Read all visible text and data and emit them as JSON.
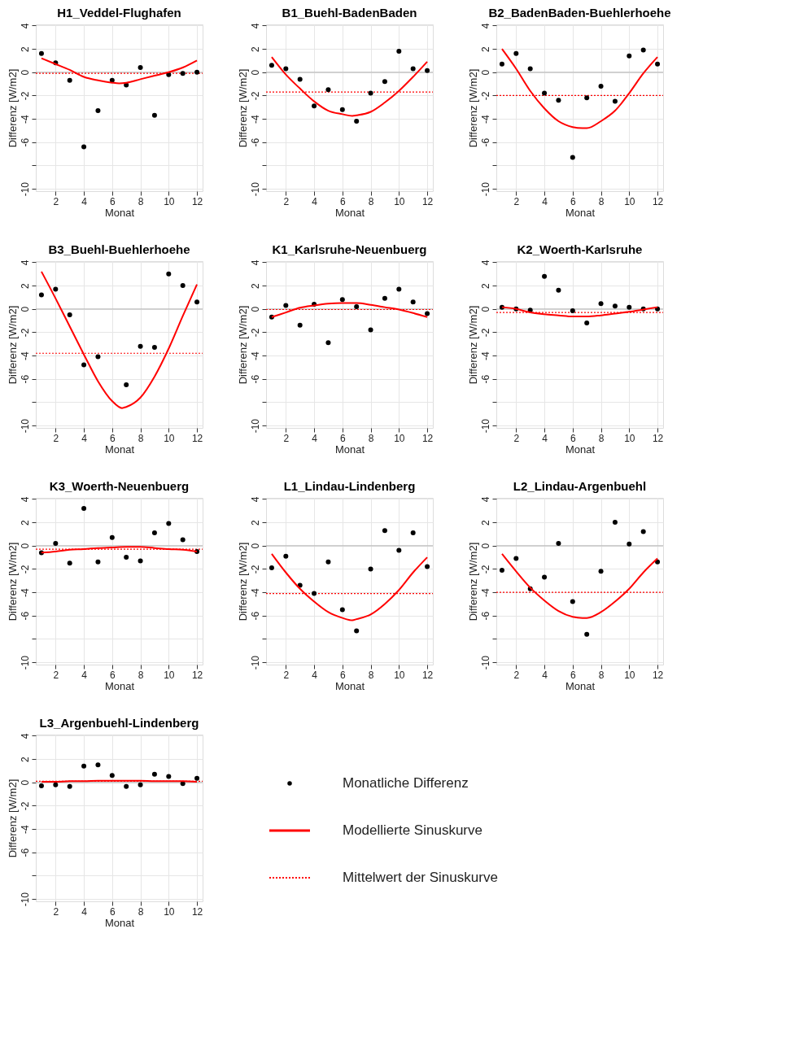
{
  "chart_data": [
    {
      "type": "scatter",
      "title": "H1_Veddel-Flughafen",
      "xlabel": "Monat",
      "ylabel": "Differenz [W/m2]",
      "xlim": [
        0.6,
        12.4
      ],
      "ylim": [
        -10.2,
        4.1
      ],
      "xticks": [
        2,
        4,
        6,
        8,
        10,
        12
      ],
      "yticks": [
        -10,
        {
          "value": -8,
          "label": null
        },
        -6,
        -4,
        -2,
        0,
        2,
        4
      ],
      "grid": true,
      "marker": "circle",
      "x": [
        1,
        2,
        3,
        4,
        5,
        6,
        7,
        8,
        9,
        10,
        11,
        12
      ],
      "series": [
        {
          "type": "scatter",
          "color": "#000000",
          "values": [
            1.6,
            0.8,
            -0.7,
            -6.4,
            -3.3,
            -0.7,
            -1.1,
            0.4,
            -3.7,
            -0.2,
            -0.1,
            0
          ]
        },
        {
          "type": "line",
          "color": "#ff0000",
          "line_style": "solid",
          "marker": "none",
          "x": [
            1,
            2,
            3,
            4,
            5,
            6,
            6.5,
            7,
            8,
            9,
            10,
            11,
            12
          ],
          "values": [
            1.2,
            0.7,
            0.2,
            -0.4,
            -0.7,
            -0.9,
            -0.95,
            -0.9,
            -0.6,
            -0.3,
            0,
            0.4,
            1.0
          ]
        }
      ],
      "ref_lines": [
        {
          "axis": "y",
          "value": 0,
          "color": "#bebebe",
          "line_style": "solid"
        },
        {
          "axis": "y",
          "value": -0.1,
          "color": "#ff0000",
          "line_style": "dotted"
        }
      ]
    },
    {
      "type": "scatter",
      "title": "B1_Buehl-BadenBaden",
      "xlabel": "Monat",
      "ylabel": "Differenz [W/m2]",
      "xlim": [
        0.6,
        12.4
      ],
      "ylim": [
        -10.2,
        4.1
      ],
      "xticks": [
        2,
        4,
        6,
        8,
        10,
        12
      ],
      "yticks": [
        -10,
        {
          "value": -8,
          "label": null
        },
        -6,
        -4,
        -2,
        0,
        2,
        4
      ],
      "grid": true,
      "marker": "circle",
      "x": [
        1,
        2,
        3,
        4,
        5,
        6,
        7,
        8,
        9,
        10,
        11,
        12
      ],
      "series": [
        {
          "type": "scatter",
          "color": "#000000",
          "values": [
            0.6,
            0.3,
            -0.6,
            -2.9,
            -1.5,
            -3.2,
            -4.2,
            -1.8,
            -0.8,
            1.8,
            0.3,
            0.15
          ]
        },
        {
          "type": "line",
          "color": "#ff0000",
          "line_style": "solid",
          "marker": "none",
          "x": [
            1,
            2,
            3,
            4,
            5,
            6,
            6.7,
            7,
            8,
            9,
            10,
            11,
            12
          ],
          "values": [
            1.3,
            -0.2,
            -1.4,
            -2.5,
            -3.3,
            -3.6,
            -3.75,
            -3.7,
            -3.4,
            -2.6,
            -1.6,
            -0.4,
            0.9
          ]
        }
      ],
      "ref_lines": [
        {
          "axis": "y",
          "value": 0,
          "color": "#bebebe",
          "line_style": "solid"
        },
        {
          "axis": "y",
          "value": -1.7,
          "color": "#ff0000",
          "line_style": "dotted"
        }
      ]
    },
    {
      "type": "scatter",
      "title": "B2_BadenBaden-Buehlerhoehe",
      "xlabel": "Monat",
      "ylabel": "Differenz [W/m2]",
      "xlim": [
        0.6,
        12.4
      ],
      "ylim": [
        -10.2,
        4.1
      ],
      "xticks": [
        2,
        4,
        6,
        8,
        10,
        12
      ],
      "yticks": [
        -10,
        {
          "value": -8,
          "label": null
        },
        -6,
        -4,
        -2,
        0,
        2,
        4
      ],
      "grid": true,
      "marker": "circle",
      "x": [
        1,
        2,
        3,
        4,
        5,
        6,
        7,
        8,
        9,
        10,
        11,
        12
      ],
      "series": [
        {
          "type": "scatter",
          "color": "#000000",
          "values": [
            0.7,
            1.6,
            0.3,
            -1.8,
            -2.4,
            -7.3,
            -2.2,
            -1.2,
            -2.5,
            1.4,
            1.9,
            0.7
          ]
        },
        {
          "type": "line",
          "color": "#ff0000",
          "line_style": "solid",
          "marker": "none",
          "x": [
            1,
            2,
            3,
            4,
            5,
            6,
            6.7,
            7,
            8,
            9,
            10,
            11,
            12
          ],
          "values": [
            2.0,
            0.3,
            -1.6,
            -3.1,
            -4.2,
            -4.7,
            -4.8,
            -4.8,
            -4.2,
            -3.3,
            -1.8,
            -0.1,
            1.3
          ]
        }
      ],
      "ref_lines": [
        {
          "axis": "y",
          "value": 0,
          "color": "#bebebe",
          "line_style": "solid"
        },
        {
          "axis": "y",
          "value": -2.0,
          "color": "#ff0000",
          "line_style": "dotted"
        }
      ]
    },
    {
      "type": "scatter",
      "title": "B3_Buehl-Buehlerhoehe",
      "xlabel": "Monat",
      "ylabel": "Differenz [W/m2]",
      "xlim": [
        0.6,
        12.4
      ],
      "ylim": [
        -10.2,
        4.1
      ],
      "xticks": [
        2,
        4,
        6,
        8,
        10,
        12
      ],
      "yticks": [
        -10,
        {
          "value": -8,
          "label": null
        },
        -6,
        -4,
        -2,
        0,
        2,
        4
      ],
      "grid": true,
      "marker": "circle",
      "x": [
        1,
        2,
        3,
        4,
        5,
        6,
        7,
        8,
        9,
        10,
        11,
        12
      ],
      "series": [
        {
          "type": "scatter",
          "color": "#000000",
          "values": [
            1.2,
            1.7,
            -0.5,
            -4.8,
            -4.1,
            null,
            -6.5,
            -3.2,
            -3.3,
            3.0,
            2.0,
            0.6
          ]
        },
        {
          "type": "line",
          "color": "#ff0000",
          "line_style": "solid",
          "marker": "none",
          "x": [
            1,
            2,
            3,
            4,
            5,
            6,
            6.7,
            7,
            8,
            9,
            10,
            11,
            12
          ],
          "values": [
            3.2,
            0.9,
            -1.5,
            -3.9,
            -6.2,
            -7.9,
            -8.5,
            -8.4,
            -7.6,
            -5.8,
            -3.4,
            -0.6,
            2.1
          ]
        }
      ],
      "ref_lines": [
        {
          "axis": "y",
          "value": 0,
          "color": "#bebebe",
          "line_style": "solid"
        },
        {
          "axis": "y",
          "value": -3.8,
          "color": "#ff0000",
          "line_style": "dotted"
        }
      ]
    },
    {
      "type": "scatter",
      "title": "K1_Karlsruhe-Neuenbuerg",
      "xlabel": "Monat",
      "ylabel": "Differenz [W/m2]",
      "xlim": [
        0.6,
        12.4
      ],
      "ylim": [
        -10.2,
        4.1
      ],
      "xticks": [
        2,
        4,
        6,
        8,
        10,
        12
      ],
      "yticks": [
        -10,
        {
          "value": -8,
          "label": null
        },
        -6,
        -4,
        -2,
        0,
        2,
        4
      ],
      "grid": true,
      "marker": "circle",
      "x": [
        1,
        2,
        3,
        4,
        5,
        6,
        7,
        8,
        9,
        10,
        11,
        12
      ],
      "series": [
        {
          "type": "scatter",
          "color": "#000000",
          "values": [
            -0.7,
            0.3,
            -1.4,
            0.4,
            -2.9,
            0.8,
            0.2,
            -1.8,
            0.9,
            1.7,
            0.6,
            -0.4
          ]
        },
        {
          "type": "line",
          "color": "#ff0000",
          "line_style": "solid",
          "marker": "none",
          "x": [
            1,
            2,
            3,
            4,
            5,
            6,
            7,
            8,
            9,
            10,
            11,
            12
          ],
          "values": [
            -0.7,
            -0.3,
            0.1,
            0.3,
            0.45,
            0.5,
            0.5,
            0.35,
            0.15,
            -0.05,
            -0.35,
            -0.7
          ]
        }
      ],
      "ref_lines": [
        {
          "axis": "y",
          "value": 0,
          "color": "#bebebe",
          "line_style": "solid"
        },
        {
          "axis": "y",
          "value": -0.05,
          "color": "#ff0000",
          "line_style": "dotted"
        }
      ]
    },
    {
      "type": "scatter",
      "title": "K2_Woerth-Karlsruhe",
      "xlabel": "Monat",
      "ylabel": "Differenz [W/m2]",
      "xlim": [
        0.6,
        12.4
      ],
      "ylim": [
        -10.2,
        4.1
      ],
      "xticks": [
        2,
        4,
        6,
        8,
        10,
        12
      ],
      "yticks": [
        -10,
        {
          "value": -8,
          "label": null
        },
        -6,
        -4,
        -2,
        0,
        2,
        4
      ],
      "grid": true,
      "marker": "circle",
      "x": [
        1,
        2,
        3,
        4,
        5,
        6,
        7,
        8,
        9,
        10,
        11,
        12
      ],
      "series": [
        {
          "type": "scatter",
          "color": "#000000",
          "values": [
            0.15,
            0,
            -0.1,
            2.8,
            1.6,
            -0.15,
            -1.2,
            0.45,
            0.25,
            0.15,
            0,
            0
          ]
        },
        {
          "type": "line",
          "color": "#ff0000",
          "line_style": "solid",
          "marker": "none",
          "x": [
            1,
            2,
            3,
            4,
            5,
            6,
            7,
            8,
            9,
            10,
            11,
            12
          ],
          "values": [
            0.15,
            0,
            -0.3,
            -0.45,
            -0.55,
            -0.65,
            -0.65,
            -0.55,
            -0.4,
            -0.25,
            -0.05,
            0.15
          ]
        }
      ],
      "ref_lines": [
        {
          "axis": "y",
          "value": 0,
          "color": "#bebebe",
          "line_style": "solid"
        },
        {
          "axis": "y",
          "value": -0.3,
          "color": "#ff0000",
          "line_style": "dotted"
        }
      ]
    },
    {
      "type": "scatter",
      "title": "K3_Woerth-Neuenbuerg",
      "xlabel": "Monat",
      "ylabel": "Differenz [W/m2]",
      "xlim": [
        0.6,
        12.4
      ],
      "ylim": [
        -10.2,
        4.1
      ],
      "xticks": [
        2,
        4,
        6,
        8,
        10,
        12
      ],
      "yticks": [
        -10,
        {
          "value": -8,
          "label": null
        },
        -6,
        -4,
        -2,
        0,
        2,
        4
      ],
      "grid": true,
      "marker": "circle",
      "x": [
        1,
        2,
        3,
        4,
        5,
        6,
        7,
        8,
        9,
        10,
        11,
        12
      ],
      "series": [
        {
          "type": "scatter",
          "color": "#000000",
          "values": [
            -0.6,
            0.2,
            -1.5,
            3.2,
            -1.4,
            0.7,
            -1.0,
            -1.3,
            1.1,
            1.9,
            0.5,
            -0.5
          ]
        },
        {
          "type": "line",
          "color": "#ff0000",
          "line_style": "solid",
          "marker": "none",
          "x": [
            1,
            2,
            3,
            4,
            5,
            6,
            7,
            8,
            9,
            10,
            11,
            12
          ],
          "values": [
            -0.6,
            -0.5,
            -0.35,
            -0.3,
            -0.2,
            -0.15,
            -0.1,
            -0.1,
            -0.2,
            -0.3,
            -0.35,
            -0.5
          ]
        }
      ],
      "ref_lines": [
        {
          "axis": "y",
          "value": 0,
          "color": "#bebebe",
          "line_style": "solid"
        },
        {
          "axis": "y",
          "value": -0.3,
          "color": "#ff0000",
          "line_style": "dotted"
        }
      ]
    },
    {
      "type": "scatter",
      "title": "L1_Lindau-Lindenberg",
      "xlabel": "Monat",
      "ylabel": "Differenz [W/m2]",
      "xlim": [
        0.6,
        12.4
      ],
      "ylim": [
        -10.2,
        4.1
      ],
      "xticks": [
        2,
        4,
        6,
        8,
        10,
        12
      ],
      "yticks": [
        -10,
        {
          "value": -8,
          "label": null
        },
        -6,
        -4,
        -2,
        0,
        2,
        4
      ],
      "grid": true,
      "marker": "circle",
      "x": [
        1,
        2,
        3,
        4,
        5,
        6,
        7,
        8,
        9,
        10,
        11,
        12
      ],
      "series": [
        {
          "type": "scatter",
          "color": "#000000",
          "values": [
            -1.9,
            -0.9,
            -3.4,
            -4.1,
            -1.4,
            -5.5,
            -7.3,
            -2.0,
            1.3,
            -0.4,
            1.1,
            -1.8
          ]
        },
        {
          "type": "line",
          "color": "#ff0000",
          "line_style": "solid",
          "marker": "none",
          "x": [
            1,
            2,
            3,
            4,
            5,
            6,
            6.7,
            7,
            8,
            9,
            10,
            11,
            12
          ],
          "values": [
            -0.7,
            -2.3,
            -3.7,
            -4.8,
            -5.7,
            -6.2,
            -6.4,
            -6.3,
            -5.9,
            -5.0,
            -3.8,
            -2.3,
            -1.0
          ]
        }
      ],
      "ref_lines": [
        {
          "axis": "y",
          "value": 0,
          "color": "#bebebe",
          "line_style": "solid"
        },
        {
          "axis": "y",
          "value": -4.1,
          "color": "#ff0000",
          "line_style": "dotted"
        }
      ]
    },
    {
      "type": "scatter",
      "title": "L2_Lindau-Argenbuehl",
      "xlabel": "Monat",
      "ylabel": "Differenz [W/m2]",
      "xlim": [
        0.6,
        12.4
      ],
      "ylim": [
        -10.2,
        4.1
      ],
      "xticks": [
        2,
        4,
        6,
        8,
        10,
        12
      ],
      "yticks": [
        -10,
        {
          "value": -8,
          "label": null
        },
        -6,
        -4,
        -2,
        0,
        2,
        4
      ],
      "grid": true,
      "marker": "circle",
      "x": [
        1,
        2,
        3,
        4,
        5,
        6,
        7,
        8,
        9,
        10,
        11,
        12
      ],
      "series": [
        {
          "type": "scatter",
          "color": "#000000",
          "values": [
            -2.1,
            -1.1,
            -3.7,
            -2.7,
            0.2,
            -4.8,
            -7.6,
            -2.2,
            2.0,
            0.15,
            1.2,
            -1.4
          ]
        },
        {
          "type": "line",
          "color": "#ff0000",
          "line_style": "solid",
          "marker": "none",
          "x": [
            1,
            2,
            3,
            4,
            5,
            6,
            6.7,
            7,
            8,
            9,
            10,
            11,
            12
          ],
          "values": [
            -0.7,
            -2.2,
            -3.6,
            -4.7,
            -5.6,
            -6.1,
            -6.2,
            -6.2,
            -5.7,
            -4.8,
            -3.7,
            -2.3,
            -1.1
          ]
        }
      ],
      "ref_lines": [
        {
          "axis": "y",
          "value": 0,
          "color": "#bebebe",
          "line_style": "solid"
        },
        {
          "axis": "y",
          "value": -4.0,
          "color": "#ff0000",
          "line_style": "dotted"
        }
      ]
    },
    {
      "type": "scatter",
      "title": "L3_Argenbuehl-Lindenberg",
      "xlabel": "Monat",
      "ylabel": "Differenz [W/m2]",
      "xlim": [
        0.6,
        12.4
      ],
      "ylim": [
        -10.2,
        4.1
      ],
      "xticks": [
        2,
        4,
        6,
        8,
        10,
        12
      ],
      "yticks": [
        -10,
        {
          "value": -8,
          "label": null
        },
        -6,
        -4,
        -2,
        0,
        2,
        4
      ],
      "grid": true,
      "marker": "circle",
      "legend": "right",
      "x": [
        1,
        2,
        3,
        4,
        5,
        6,
        7,
        8,
        9,
        10,
        11,
        12
      ],
      "series": [
        {
          "type": "scatter",
          "name": "Monatliche Differenz",
          "color": "#000000",
          "values": [
            -0.3,
            -0.2,
            -0.35,
            1.4,
            1.5,
            0.6,
            -0.35,
            -0.2,
            0.7,
            0.5,
            -0.1,
            0.35
          ]
        },
        {
          "type": "line",
          "name": "Modellierte Sinuskurve",
          "color": "#ff0000",
          "line_style": "solid",
          "marker": "none",
          "x": [
            1,
            2,
            3,
            4,
            5,
            6,
            7,
            8,
            9,
            10,
            11,
            12
          ],
          "values": [
            0.05,
            0.05,
            0.1,
            0.1,
            0.15,
            0.15,
            0.15,
            0.15,
            0.1,
            0.1,
            0.1,
            0.05
          ]
        }
      ],
      "ref_lines": [
        {
          "axis": "y",
          "value": 0,
          "color": "#bebebe",
          "line_style": "solid"
        },
        {
          "axis": "y",
          "value": 0.1,
          "label": "Mittelwert der Sinuskurve",
          "color": "#ff0000",
          "line_style": "dotted"
        }
      ]
    }
  ]
}
